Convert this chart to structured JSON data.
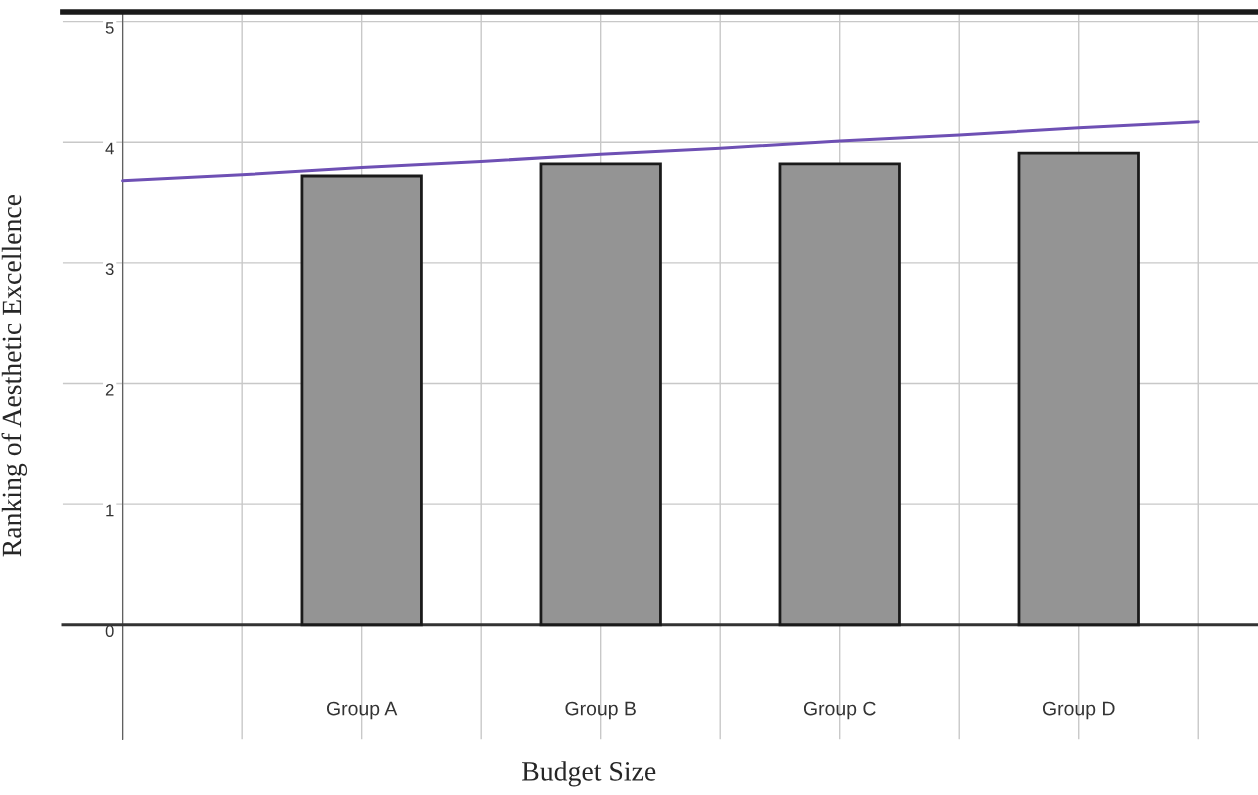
{
  "chart_data": {
    "type": "bar",
    "xlabel": "Budget Size",
    "ylabel": "Ranking of Aesthetic Excellence",
    "ylim": [
      -0.95,
      5.08
    ],
    "categories": [
      null,
      null,
      "Group A",
      null,
      "Group B",
      null,
      "Group C",
      null,
      "Group D",
      null
    ],
    "yticks": [
      0,
      1,
      2,
      3,
      4,
      5
    ],
    "grid": true,
    "series": [
      {
        "color": "#949494",
        "values": [
          null,
          null,
          3.72,
          null,
          3.82,
          null,
          3.82,
          null,
          3.91,
          null
        ]
      },
      {
        "type": "line",
        "color": "#6e50b4",
        "values": [
          3.68,
          3.73,
          3.79,
          3.84,
          3.9,
          3.95,
          4.01,
          4.06,
          4.12,
          4.17
        ]
      }
    ]
  }
}
